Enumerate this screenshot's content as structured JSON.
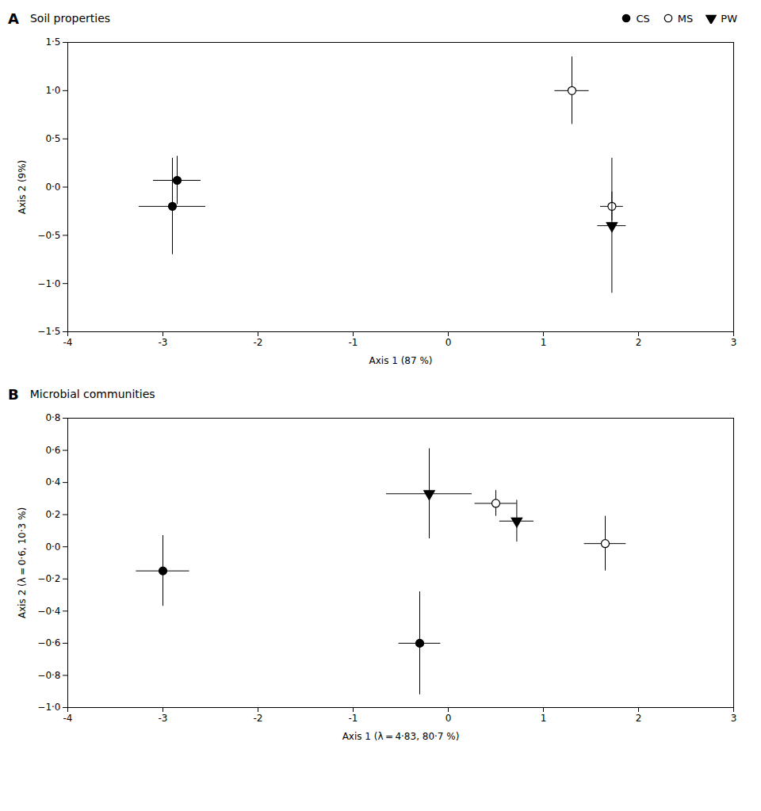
{
  "chart_data": [
    {
      "type": "scatter",
      "panel_label": "A",
      "title": "Soil properties",
      "xlabel": "Axis 1 (87 %)",
      "ylabel": "Axis 2 (9%)",
      "xlim": [
        -4,
        3
      ],
      "ylim": [
        -1.5,
        1.5
      ],
      "xticks": [
        -4,
        -3,
        -2,
        -1,
        0,
        1,
        2,
        3
      ],
      "yticks": [
        {
          "value": -1.5,
          "label": "−1·5"
        },
        {
          "value": -1.0,
          "label": "−1·0"
        },
        {
          "value": -0.5,
          "label": "−0·5"
        },
        {
          "value": 0.0,
          "label": "0·0"
        },
        {
          "value": 0.5,
          "label": "0·5"
        },
        {
          "value": 1.0,
          "label": "1·0"
        },
        {
          "value": 1.5,
          "label": "1·5"
        }
      ],
      "grid": false,
      "legend": "upper right",
      "series": [
        {
          "name": "CS",
          "marker": "filled_circle",
          "color": "black",
          "values": [
            {
              "x": -2.85,
              "y": 0.07,
              "xerr": 0.25,
              "yerr": 0.25
            },
            {
              "x": -2.9,
              "y": -0.2,
              "xerr": 0.35,
              "yerr": 0.5
            }
          ]
        },
        {
          "name": "MS",
          "marker": "open_circle",
          "color": "black",
          "values": [
            {
              "x": 1.3,
              "y": 1.0,
              "xerr": 0.18,
              "yerr": 0.35
            },
            {
              "x": 1.72,
              "y": -0.2,
              "xerr": 0.12,
              "yerr": 0.15
            }
          ]
        },
        {
          "name": "PW",
          "marker": "filled_triangle_down",
          "color": "black",
          "values": [
            {
              "x": 1.72,
              "y": -0.4,
              "xerr": 0.15,
              "yerr": 0.7
            }
          ]
        }
      ]
    },
    {
      "type": "scatter",
      "panel_label": "B",
      "title": "Microbial communities",
      "xlabel": "Axis 1 (λ = 4·83, 80·7 %)",
      "ylabel": "Axis 2 (λ = 0·6, 10·3 %)",
      "xlim": [
        -4,
        3
      ],
      "ylim": [
        -1.0,
        0.8
      ],
      "xticks": [
        -4,
        -3,
        -2,
        -1,
        0,
        1,
        2,
        3
      ],
      "yticks": [
        {
          "value": -1.0,
          "label": "−1·0"
        },
        {
          "value": -0.8,
          "label": "−0·8"
        },
        {
          "value": -0.6,
          "label": "−0·6"
        },
        {
          "value": -0.4,
          "label": "−0·4"
        },
        {
          "value": -0.2,
          "label": "−0·2"
        },
        {
          "value": 0.0,
          "label": "0·0"
        },
        {
          "value": 0.2,
          "label": "0·2"
        },
        {
          "value": 0.4,
          "label": "0·4"
        },
        {
          "value": 0.6,
          "label": "0·6"
        },
        {
          "value": 0.8,
          "label": "0·8"
        }
      ],
      "grid": false,
      "series": [
        {
          "name": "CS",
          "marker": "filled_circle",
          "color": "black",
          "values": [
            {
              "x": -3.0,
              "y": -0.15,
              "xerr": 0.28,
              "yerr": 0.22
            },
            {
              "x": -0.3,
              "y": -0.6,
              "xerr": 0.22,
              "yerr": 0.32
            }
          ]
        },
        {
          "name": "MS",
          "marker": "open_circle",
          "color": "black",
          "values": [
            {
              "x": 0.5,
              "y": 0.27,
              "xerr": 0.22,
              "yerr": 0.08
            },
            {
              "x": 1.65,
              "y": 0.02,
              "xerr": 0.22,
              "yerr": 0.17
            }
          ]
        },
        {
          "name": "PW",
          "marker": "filled_triangle_down",
          "color": "black",
          "values": [
            {
              "x": -0.2,
              "y": 0.33,
              "xerr": 0.45,
              "yerr": 0.28
            },
            {
              "x": 0.72,
              "y": 0.16,
              "xerr": 0.18,
              "yerr": 0.13
            }
          ]
        }
      ]
    }
  ]
}
